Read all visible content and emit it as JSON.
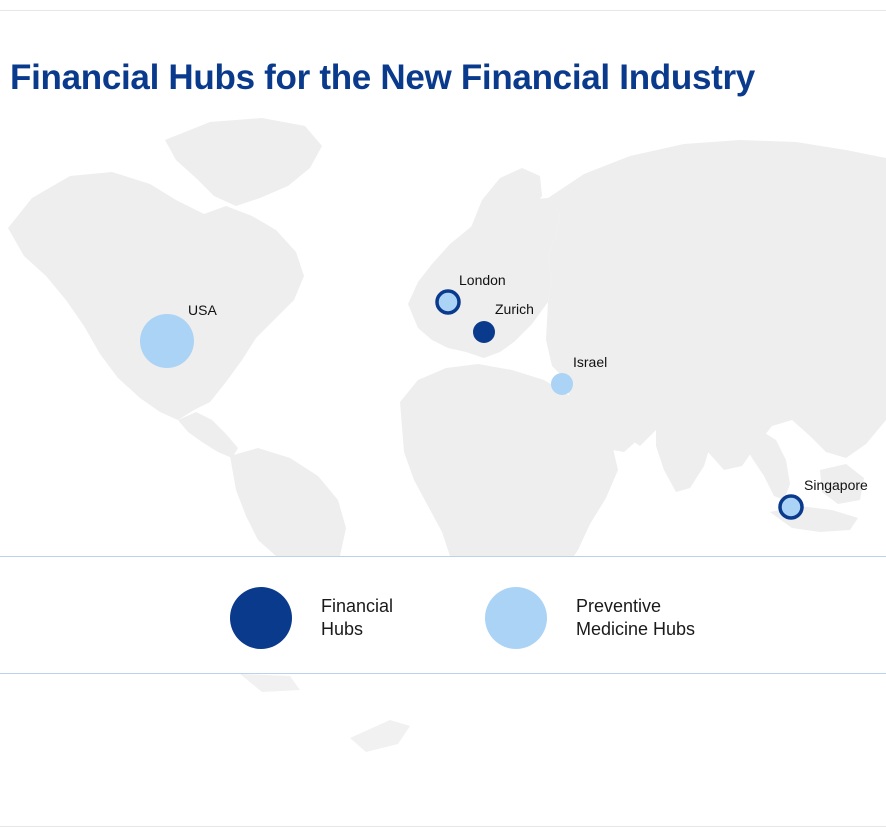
{
  "title": "Financial Hubs for the New Financial Industry",
  "colors": {
    "title": "#0a3a8c",
    "financial_hub": "#0a3a8c",
    "preventive_hub": "#abd3f5",
    "land": "#eeeeee",
    "legend_rule": "#b9d3ee"
  },
  "markers": [
    {
      "id": "usa",
      "label": "USA",
      "types": [
        "preventive"
      ]
    },
    {
      "id": "london",
      "label": "London",
      "types": [
        "financial",
        "preventive"
      ]
    },
    {
      "id": "zurich",
      "label": "Zurich",
      "types": [
        "financial"
      ]
    },
    {
      "id": "israel",
      "label": "Israel",
      "types": [
        "preventive"
      ]
    },
    {
      "id": "singapore",
      "label": "Singapore",
      "types": [
        "financial",
        "preventive"
      ]
    }
  ],
  "legend": {
    "financial": {
      "line1": "Financial",
      "line2": "Hubs"
    },
    "preventive": {
      "line1": "Preventive",
      "line2": "Medicine Hubs"
    }
  }
}
